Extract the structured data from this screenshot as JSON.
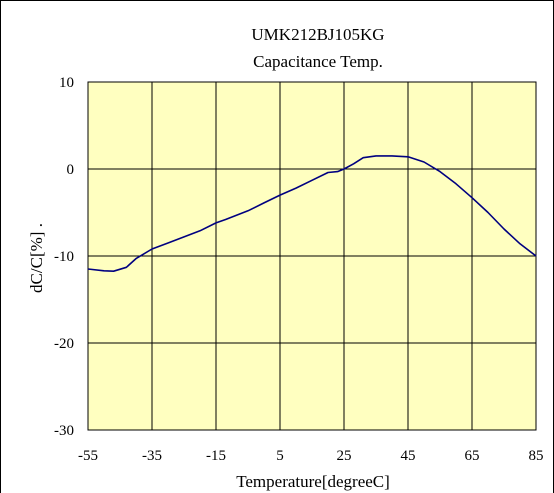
{
  "chart_data": {
    "type": "line",
    "title": "UMK212BJ105KG",
    "subtitle": "Capacitance Temp.",
    "xlabel": "Temperature[degreeC]",
    "ylabel": "dC/C[%] .",
    "xlim": [
      -55,
      85
    ],
    "ylim": [
      -30,
      10
    ],
    "x_ticks": [
      -55,
      -35,
      -15,
      5,
      25,
      45,
      65,
      85
    ],
    "y_ticks": [
      10,
      0,
      -10,
      -20,
      -30
    ],
    "x_tick_labels": [
      "-55",
      "-35",
      "-15",
      "5",
      "25",
      "45",
      "65",
      "85"
    ],
    "y_tick_labels": [
      "10",
      "0",
      "-10",
      "-20",
      "-30"
    ],
    "grid": true,
    "plot_background": "#FFFFC0",
    "series_color": "#000080",
    "series": [
      {
        "x": [
          -55,
          -50,
          -47,
          -43,
          -40,
          -35,
          -30,
          -25,
          -20,
          -15,
          -12,
          -5,
          0,
          5,
          10,
          15,
          20,
          23,
          25,
          28,
          31,
          35,
          40,
          45,
          50,
          55,
          60,
          65,
          70,
          75,
          80,
          85
        ],
        "y": [
          -11.5,
          -11.7,
          -11.75,
          -11.3,
          -10.3,
          -9.2,
          -8.5,
          -7.8,
          -7.1,
          -6.2,
          -5.8,
          -4.8,
          -3.9,
          -3.0,
          -2.2,
          -1.3,
          -0.4,
          -0.3,
          0.0,
          0.6,
          1.3,
          1.5,
          1.5,
          1.4,
          0.8,
          -0.3,
          -1.7,
          -3.3,
          -5.0,
          -6.9,
          -8.6,
          -10.0
        ]
      }
    ]
  }
}
